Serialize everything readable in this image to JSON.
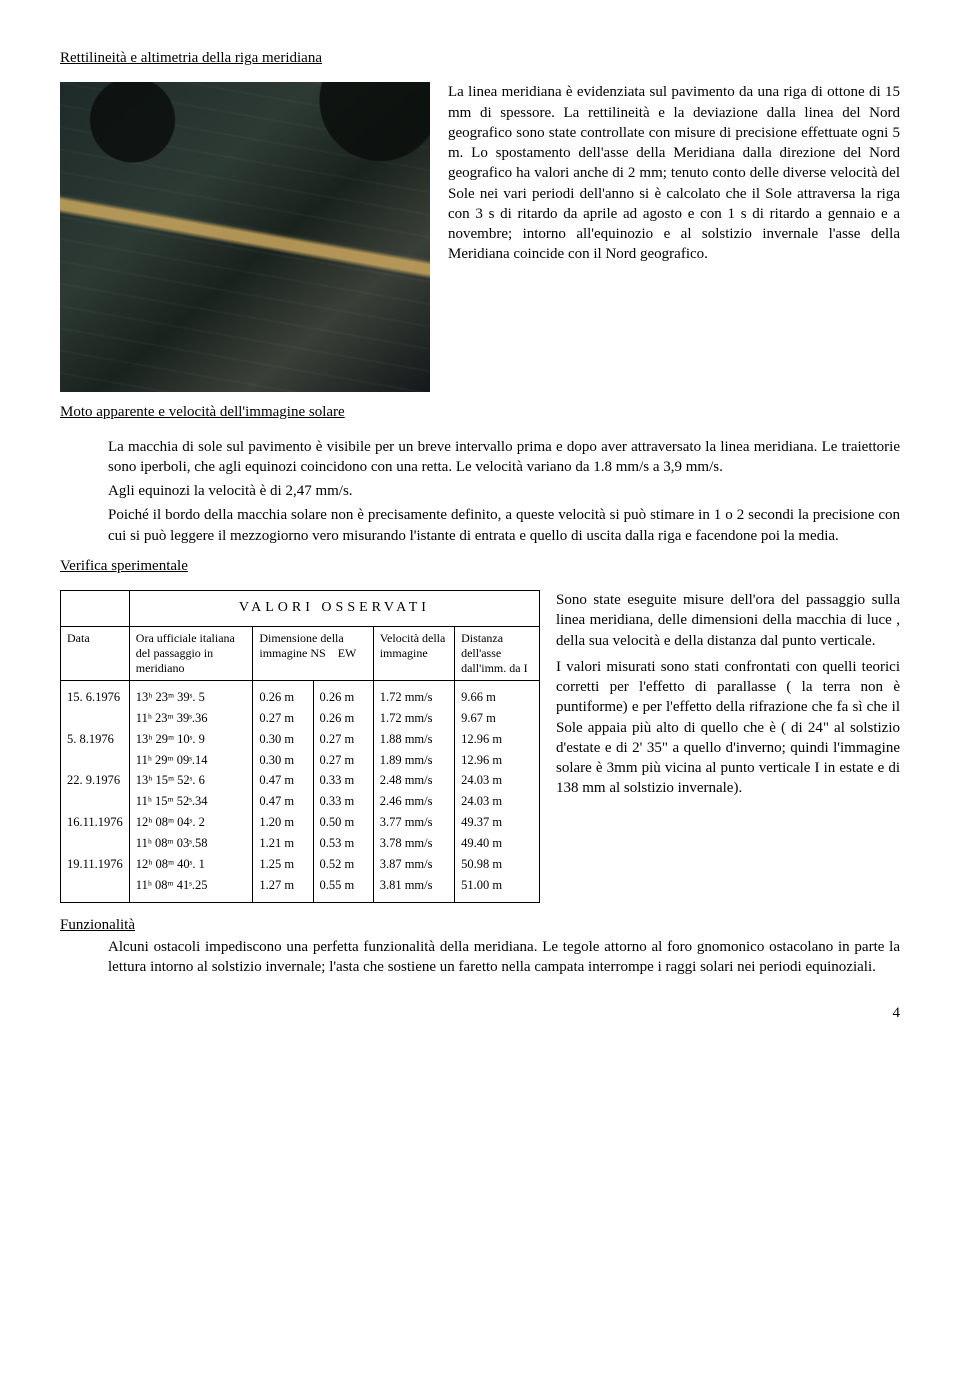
{
  "heading1": "Rettilineità e altimetria della riga meridiana",
  "para1": "La linea meridiana è evidenziata sul pavimento da una riga di ottone di 15 mm di spessore. La rettilineità e la deviazione dalla linea del Nord geografico sono state controllate con misure di precisione effettuate ogni 5 m. Lo spostamento dell'asse della Meridiana dalla direzione del Nord geografico ha valori anche di 2 mm; tenuto conto delle diverse velocità del Sole nei vari periodi dell'anno si è calcolato che il Sole attraversa la riga con 3 s di ritardo da aprile ad agosto e con 1 s di ritardo a gennaio e a novembre; intorno all'equinozio e al solstizio invernale l'asse della Meridiana coincide con il Nord geografico.",
  "heading2": "Moto apparente e velocità dell'immagine solare",
  "para2a": "La macchia di sole sul pavimento è visibile per un breve intervallo prima e dopo aver attraversato la linea meridiana. Le traiettorie sono iperboli, che agli equinozi coincidono con una retta. Le velocità variano da 1.8 mm/s a 3,9 mm/s.",
  "para2b": "Agli equinozi la velocità è di 2,47 mm/s.",
  "para2c": "Poiché il bordo della macchia solare non è precisamente definito, a queste velocità si può stimare in 1 o 2 secondi la precisione con cui si può leggere il mezzogiorno vero misurando l'istante di entrata e quello di uscita dalla riga e facendone poi la media.",
  "heading3": "Verifica sperimentale",
  "para3": "Sono state eseguite misure dell'ora del passaggio sulla linea meridiana, delle dimensioni della macchia di luce , della sua velocità e della distanza dal punto verticale.",
  "para3b": "I valori misurati sono stati confrontati con quelli teorici corretti per l'effetto di parallasse ( la terra non è puntiforme) e per l'effetto della rifrazione che fa sì che il Sole appaia più alto di quello che è ( di 24\" al solstizio d'estate e di 2' 35\" a quello d'inverno; quindi l'immagine solare è 3mm più vicina al punto verticale I in estate e di 138 mm al solstizio invernale).",
  "heading4": "Funzionalità",
  "para4": "Alcuni ostacoli impediscono una perfetta funzionalità della meridiana. Le tegole attorno al foro gnomonico ostacolano in parte la lettura intorno al solstizio invernale; l'asta che sostiene un faretto nella campata interrompe i raggi solari nei periodi equinoziali.",
  "page_number": "4",
  "table": {
    "title": "VALORI OSSERVATI",
    "columns": [
      "Data",
      "Ora ufficiale italiana del passaggio in meridiano",
      "Dimensione della immagine NS EW",
      "Velocità della immagine",
      "Distanza dell'asse dall'imm. da I"
    ],
    "rows": [
      [
        "15. 6.1976",
        "13ʰ 23ᵐ 39ˢ. 5",
        "0.26 m",
        "0.26 m",
        "1.72 mm/s",
        "9.66 m"
      ],
      [
        "",
        "11ʰ 23ᵐ 39ˢ.36",
        "0.27 m",
        "0.26 m",
        "1.72 mm/s",
        "9.67 m"
      ],
      [
        "5. 8.1976",
        "13ʰ 29ᵐ 10ˢ. 9",
        "0.30 m",
        "0.27 m",
        "1.88 mm/s",
        "12.96 m"
      ],
      [
        "",
        "11ʰ 29ᵐ 09ˢ.14",
        "0.30 m",
        "0.27 m",
        "1.89 mm/s",
        "12.96 m"
      ],
      [
        "22. 9.1976",
        "13ʰ 15ᵐ 52ˢ. 6",
        "0.47 m",
        "0.33 m",
        "2.48 mm/s",
        "24.03 m"
      ],
      [
        "",
        "11ʰ 15ᵐ 52ˢ.34",
        "0.47 m",
        "0.33 m",
        "2.46 mm/s",
        "24.03 m"
      ],
      [
        "16.11.1976",
        "12ʰ 08ᵐ 04ˢ. 2",
        "1.20 m",
        "0.50 m",
        "3.77 mm/s",
        "49.37 m"
      ],
      [
        "",
        "11ʰ 08ᵐ 03ˢ.58",
        "1.21 m",
        "0.53 m",
        "3.78 mm/s",
        "49.40 m"
      ],
      [
        "19.11.1976",
        "12ʰ 08ᵐ 40ˢ. 1",
        "1.25 m",
        "0.52 m",
        "3.87 mm/s",
        "50.98 m"
      ],
      [
        "",
        "11ʰ 08ᵐ 41ˢ.25",
        "1.27 m",
        "0.55 m",
        "3.81 mm/s",
        "51.00 m"
      ]
    ]
  }
}
